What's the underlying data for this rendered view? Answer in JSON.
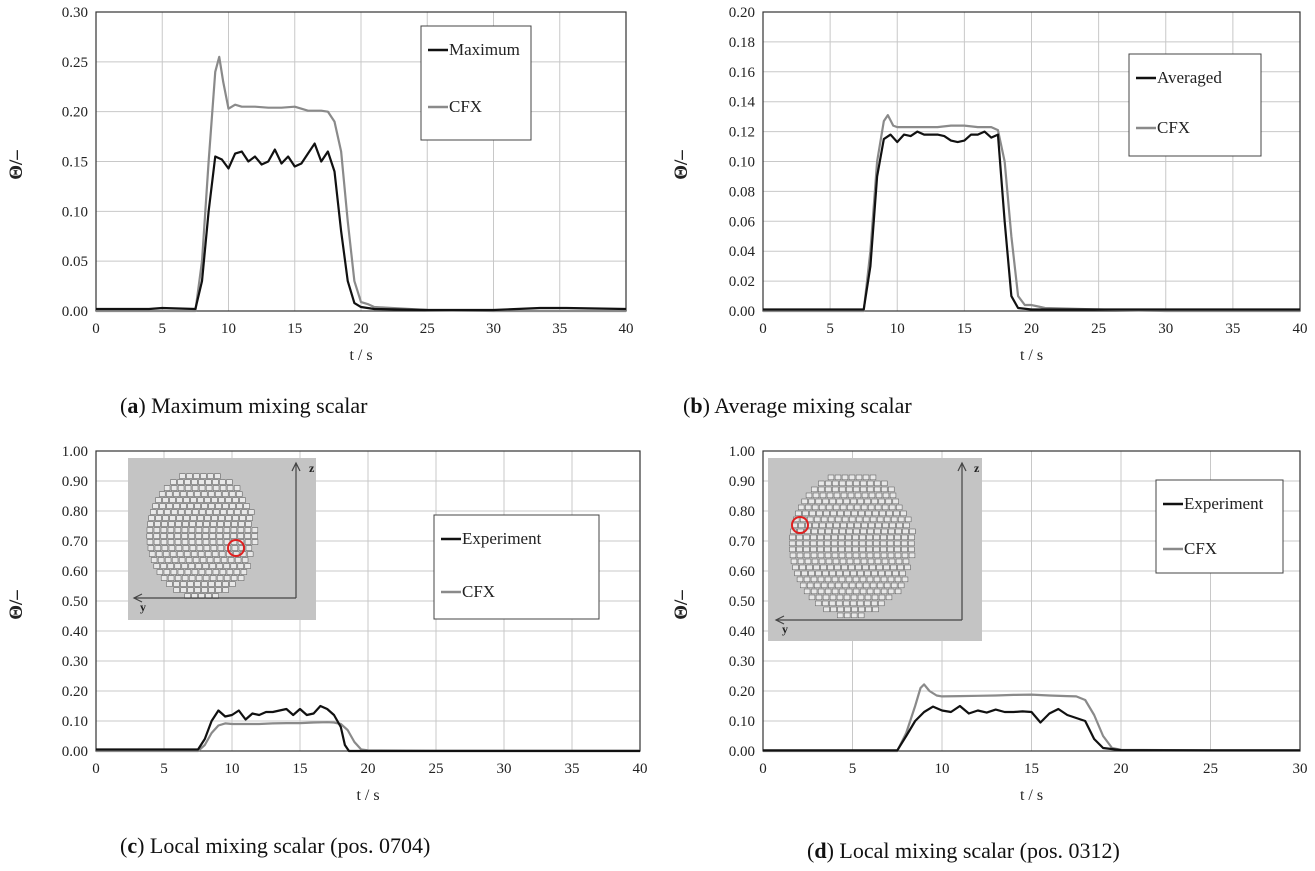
{
  "colors": {
    "experiment": "#111111",
    "cfx": "#8a8a8a",
    "grid": "#c8c8c8",
    "axis": "#333333",
    "inset_bg": "#c4c4c4",
    "marker": "#e02020"
  },
  "chart_data": [
    {
      "id": "a",
      "type": "line",
      "caption_letter": "a",
      "caption_text": ") Maximum mixing scalar",
      "xlabel": "t / s",
      "ylabel": "Θ/–",
      "xlim": [
        0,
        40
      ],
      "ylim": [
        0,
        0.3
      ],
      "xticks": [
        0,
        5,
        10,
        15,
        20,
        25,
        30,
        35,
        40
      ],
      "xtick_labels": [
        "0",
        "5",
        "10",
        "15",
        "20",
        "25",
        "30",
        "35",
        "40"
      ],
      "yticks": [
        0,
        0.05,
        0.1,
        0.15,
        0.2,
        0.25,
        0.3
      ],
      "ytick_labels": [
        "0.00",
        "0.05",
        "0.10",
        "0.15",
        "0.20",
        "0.25",
        "0.30"
      ],
      "legend_position": "top-right",
      "series": [
        {
          "name": "Maximum",
          "role": "experiment",
          "x": [
            0,
            4,
            5,
            7.5,
            8.0,
            8.5,
            9.0,
            9.5,
            10.0,
            10.5,
            11.0,
            11.5,
            12.0,
            12.5,
            13.0,
            13.5,
            14.0,
            14.5,
            15.0,
            15.5,
            16.0,
            16.5,
            17.0,
            17.5,
            18.0,
            18.5,
            19.0,
            19.5,
            20.0,
            21,
            25,
            30,
            33.5,
            35.5,
            40
          ],
          "y": [
            0.002,
            0.002,
            0.003,
            0.002,
            0.03,
            0.1,
            0.155,
            0.152,
            0.143,
            0.158,
            0.16,
            0.15,
            0.155,
            0.147,
            0.15,
            0.162,
            0.148,
            0.155,
            0.145,
            0.148,
            0.158,
            0.168,
            0.15,
            0.16,
            0.14,
            0.08,
            0.03,
            0.008,
            0.004,
            0.002,
            0.001,
            0.001,
            0.003,
            0.003,
            0.002
          ]
        },
        {
          "name": "CFX",
          "role": "cfx",
          "x": [
            0,
            7.5,
            8.0,
            8.5,
            9.0,
            9.3,
            9.6,
            10.0,
            10.5,
            11.0,
            12,
            13,
            14,
            15,
            16,
            17,
            17.5,
            18.0,
            18.5,
            19.0,
            19.5,
            20.0,
            20.5,
            21,
            25,
            30,
            35,
            40
          ],
          "y": [
            0.0,
            0.0,
            0.05,
            0.15,
            0.24,
            0.255,
            0.23,
            0.203,
            0.207,
            0.205,
            0.205,
            0.204,
            0.204,
            0.205,
            0.201,
            0.201,
            0.2,
            0.19,
            0.16,
            0.09,
            0.03,
            0.009,
            0.007,
            0.004,
            0.001,
            0.0,
            0.0,
            0.0
          ]
        }
      ]
    },
    {
      "id": "b",
      "type": "line",
      "caption_letter": "b",
      "caption_text": ") Average mixing scalar",
      "xlabel": "t / s",
      "ylabel": "Θ/–",
      "xlim": [
        0,
        40
      ],
      "ylim": [
        0,
        0.2
      ],
      "xticks": [
        0,
        5,
        10,
        15,
        20,
        25,
        30,
        35,
        40
      ],
      "xtick_labels": [
        "0",
        "5",
        "10",
        "15",
        "20",
        "25",
        "30",
        "35",
        "40"
      ],
      "yticks": [
        0,
        0.02,
        0.04,
        0.06,
        0.08,
        0.1,
        0.12,
        0.14,
        0.16,
        0.18,
        0.2
      ],
      "ytick_labels": [
        "0.00",
        "0.02",
        "0.04",
        "0.06",
        "0.08",
        "0.10",
        "0.12",
        "0.14",
        "0.16",
        "0.18",
        "0.20"
      ],
      "legend_position": "top-right",
      "series": [
        {
          "name": "Averaged",
          "role": "experiment",
          "x": [
            0,
            7.5,
            8.0,
            8.5,
            9.0,
            9.5,
            10.0,
            10.5,
            11.0,
            11.5,
            12.0,
            12.5,
            13.0,
            13.5,
            14.0,
            14.5,
            15.0,
            15.5,
            16.0,
            16.5,
            17.0,
            17.5,
            18.0,
            18.5,
            19.0,
            20,
            25,
            30,
            35,
            40
          ],
          "y": [
            0.001,
            0.001,
            0.03,
            0.09,
            0.115,
            0.118,
            0.113,
            0.118,
            0.117,
            0.12,
            0.118,
            0.118,
            0.118,
            0.117,
            0.114,
            0.113,
            0.114,
            0.118,
            0.118,
            0.12,
            0.116,
            0.118,
            0.06,
            0.01,
            0.002,
            0.001,
            0.001,
            0.001,
            0.001,
            0.001
          ]
        },
        {
          "name": "CFX",
          "role": "cfx",
          "x": [
            0,
            7.5,
            8.0,
            8.5,
            9.0,
            9.3,
            9.7,
            10.0,
            11,
            12,
            13,
            14,
            15,
            16,
            17,
            17.5,
            18.0,
            18.5,
            19.0,
            19.5,
            20.0,
            20.5,
            21,
            25,
            30,
            35,
            40
          ],
          "y": [
            0.0,
            0.0,
            0.04,
            0.1,
            0.127,
            0.131,
            0.124,
            0.123,
            0.123,
            0.123,
            0.123,
            0.124,
            0.124,
            0.123,
            0.123,
            0.121,
            0.1,
            0.05,
            0.01,
            0.004,
            0.004,
            0.003,
            0.002,
            0.001,
            0.0,
            0.0,
            0.0
          ]
        }
      ]
    },
    {
      "id": "c",
      "type": "line",
      "caption_letter": "c",
      "caption_text": ") Local mixing scalar (pos. 0704)",
      "xlabel": "t / s",
      "ylabel": "Θ/–",
      "xlim": [
        0,
        40
      ],
      "ylim": [
        0,
        1.0
      ],
      "xticks": [
        0,
        5,
        10,
        15,
        20,
        25,
        30,
        35,
        40
      ],
      "xtick_labels": [
        "0",
        "5",
        "10",
        "15",
        "20",
        "25",
        "30",
        "35",
        "40"
      ],
      "yticks": [
        0,
        0.1,
        0.2,
        0.3,
        0.4,
        0.5,
        0.6,
        0.7,
        0.8,
        0.9,
        1.0
      ],
      "ytick_labels": [
        "0.00",
        "0.10",
        "0.20",
        "0.30",
        "0.40",
        "0.50",
        "0.60",
        "0.70",
        "0.80",
        "0.90",
        "1.00"
      ],
      "legend_position": "center-right",
      "inset_labels": {
        "z": "z",
        "y": "y"
      },
      "series": [
        {
          "name": "Experiment",
          "role": "experiment",
          "x": [
            0,
            7.5,
            8.0,
            8.5,
            9.0,
            9.5,
            10.0,
            10.5,
            11.0,
            11.5,
            12.0,
            12.5,
            13.0,
            13.5,
            14.0,
            14.5,
            15.0,
            15.5,
            16.0,
            16.5,
            17.0,
            17.5,
            18.0,
            18.3,
            18.6,
            19,
            20,
            25,
            30,
            35,
            40
          ],
          "y": [
            0.005,
            0.005,
            0.04,
            0.1,
            0.135,
            0.115,
            0.12,
            0.135,
            0.105,
            0.125,
            0.12,
            0.13,
            0.13,
            0.135,
            0.14,
            0.12,
            0.14,
            0.12,
            0.125,
            0.15,
            0.14,
            0.12,
            0.08,
            0.02,
            0.0,
            0.0,
            0.0,
            0.0,
            0.0,
            0.0,
            0.0
          ]
        },
        {
          "name": "CFX",
          "role": "cfx",
          "x": [
            0,
            7.5,
            8.0,
            8.5,
            9.0,
            9.5,
            10.0,
            11,
            12,
            13,
            14,
            15,
            16,
            17,
            17.5,
            18.0,
            18.5,
            19.0,
            19.5,
            20,
            25,
            30,
            35,
            40
          ],
          "y": [
            0.0,
            0.0,
            0.02,
            0.06,
            0.085,
            0.092,
            0.09,
            0.09,
            0.09,
            0.092,
            0.093,
            0.093,
            0.095,
            0.096,
            0.095,
            0.09,
            0.07,
            0.03,
            0.005,
            0.002,
            0.001,
            0.001,
            0.001,
            0.001
          ]
        }
      ]
    },
    {
      "id": "d",
      "type": "line",
      "caption_letter": "d",
      "caption_text": ") Local mixing scalar (pos. 0312)",
      "xlabel": "t / s",
      "ylabel": "Θ/–",
      "xlim": [
        0,
        30
      ],
      "ylim": [
        0,
        1.0
      ],
      "xticks": [
        0,
        5,
        10,
        15,
        20,
        25,
        30
      ],
      "xtick_labels": [
        "0",
        "5",
        "10",
        "15",
        "20",
        "25",
        "30"
      ],
      "yticks": [
        0,
        0.1,
        0.2,
        0.3,
        0.4,
        0.5,
        0.6,
        0.7,
        0.8,
        0.9,
        1.0
      ],
      "ytick_labels": [
        "0.00",
        "0.10",
        "0.20",
        "0.30",
        "0.40",
        "0.50",
        "0.60",
        "0.70",
        "0.80",
        "0.90",
        "1.00"
      ],
      "legend_position": "top-right",
      "inset_labels": {
        "z": "z",
        "y": "y"
      },
      "series": [
        {
          "name": "Experiment",
          "role": "experiment",
          "x": [
            0,
            7.5,
            8.0,
            8.5,
            9.0,
            9.5,
            10.0,
            10.5,
            11.0,
            11.5,
            12.0,
            12.5,
            13.0,
            13.5,
            14.0,
            14.5,
            15.0,
            15.5,
            16.0,
            16.5,
            17.0,
            17.5,
            18.0,
            18.5,
            19.0,
            20,
            25,
            30
          ],
          "y": [
            0.002,
            0.002,
            0.05,
            0.1,
            0.13,
            0.148,
            0.135,
            0.13,
            0.15,
            0.125,
            0.135,
            0.128,
            0.138,
            0.13,
            0.13,
            0.132,
            0.13,
            0.095,
            0.125,
            0.14,
            0.12,
            0.11,
            0.1,
            0.04,
            0.01,
            0.003,
            0.002,
            0.002
          ]
        },
        {
          "name": "CFX",
          "role": "cfx",
          "x": [
            0,
            7.5,
            8.0,
            8.5,
            8.8,
            9.0,
            9.3,
            9.7,
            10.0,
            11,
            12,
            13,
            14,
            15,
            16,
            17,
            17.5,
            18.0,
            18.5,
            19.0,
            19.5,
            20,
            25,
            30
          ],
          "y": [
            0.0,
            0.0,
            0.06,
            0.15,
            0.21,
            0.222,
            0.2,
            0.185,
            0.182,
            0.183,
            0.184,
            0.185,
            0.187,
            0.188,
            0.185,
            0.183,
            0.182,
            0.17,
            0.12,
            0.05,
            0.01,
            0.004,
            0.002,
            0.002
          ]
        }
      ]
    }
  ]
}
